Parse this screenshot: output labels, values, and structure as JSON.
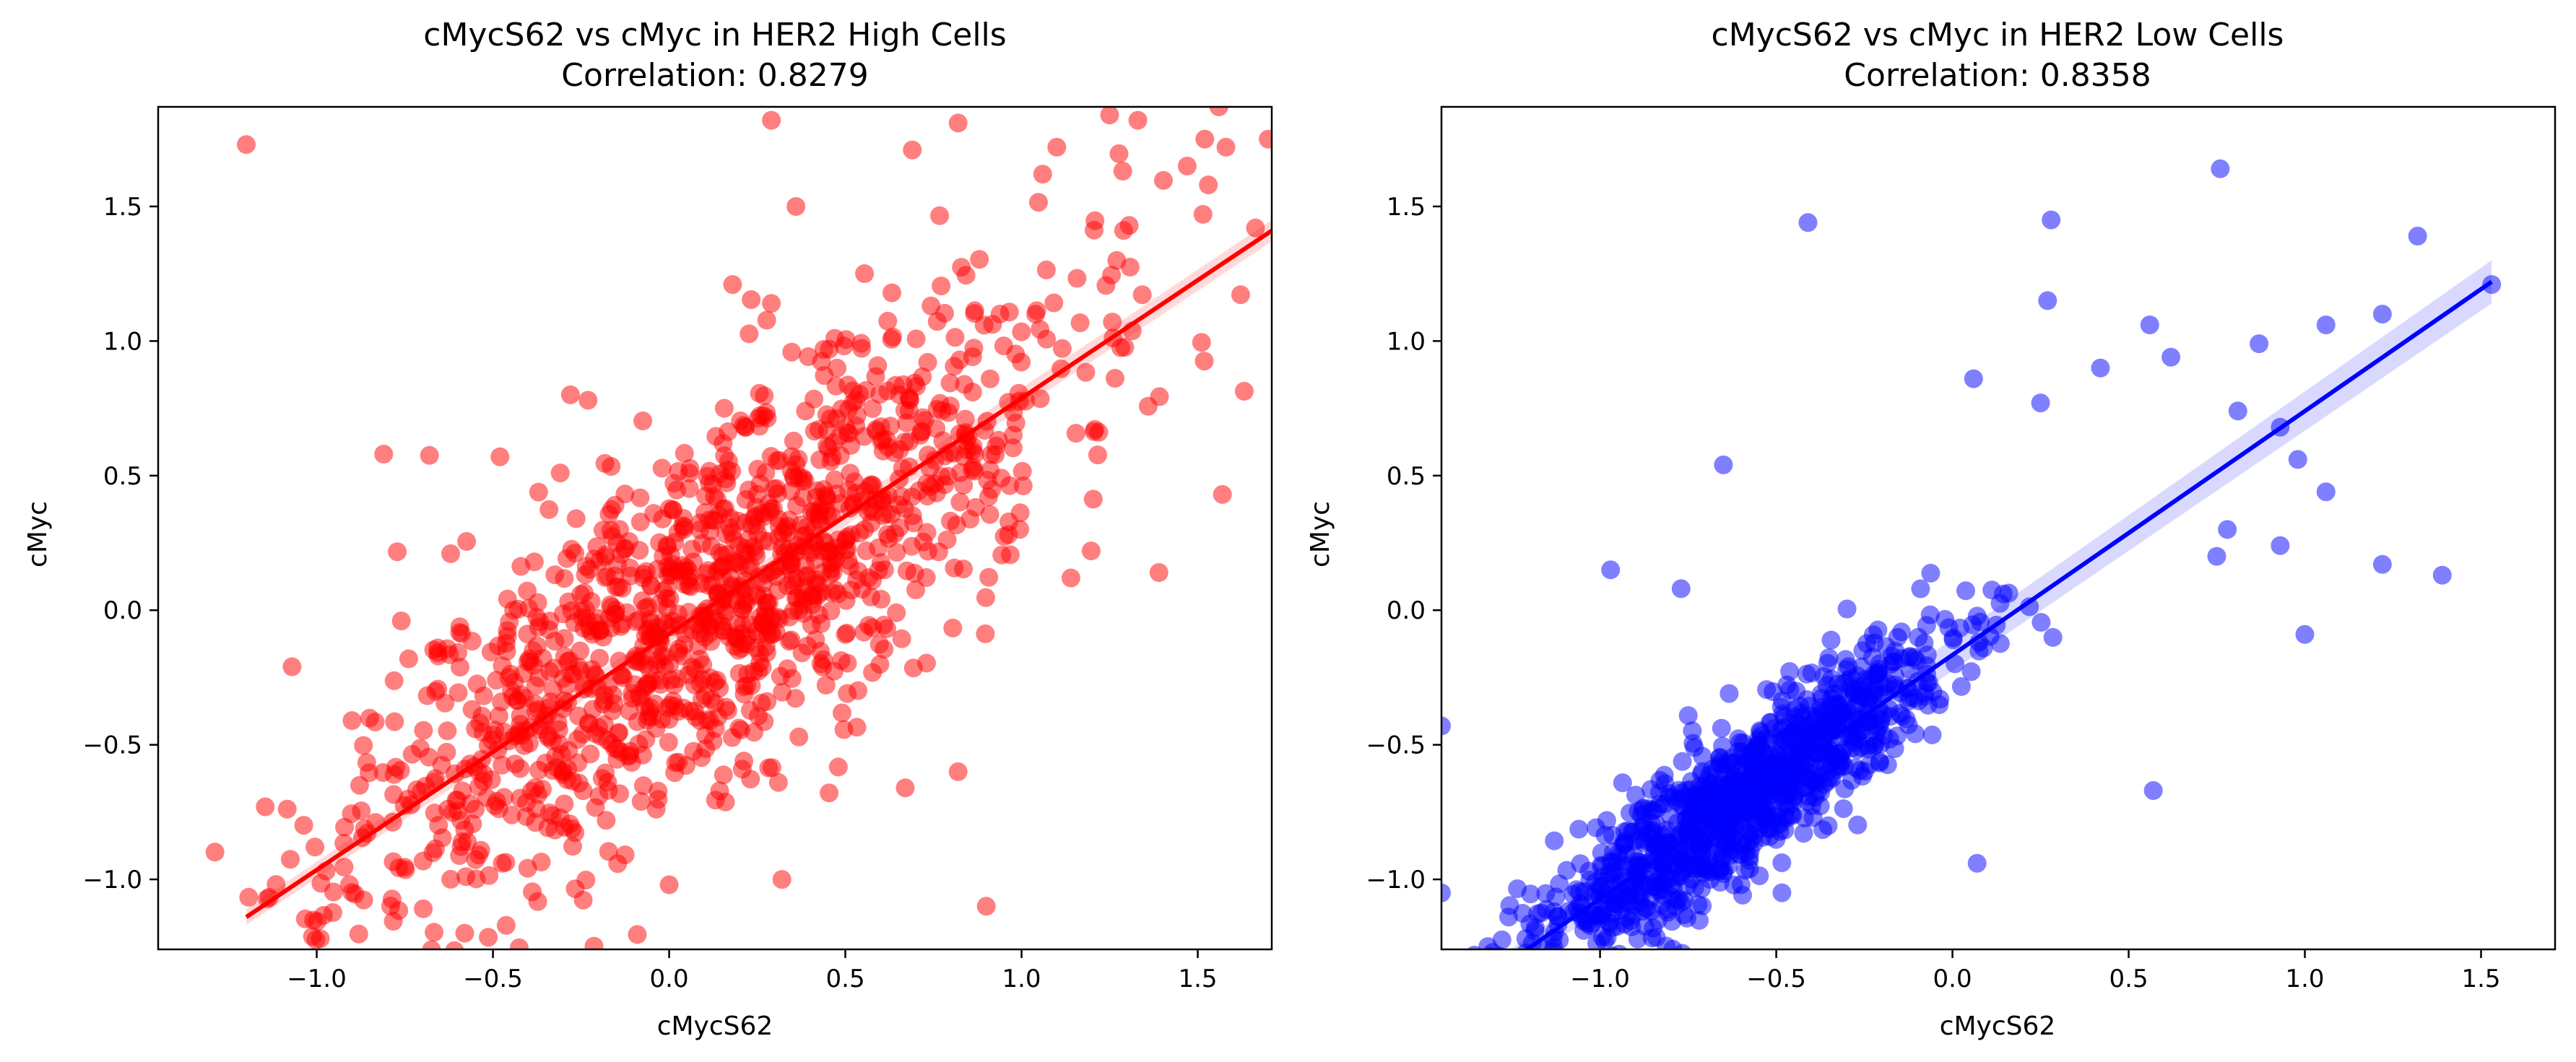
{
  "chart_data": [
    {
      "type": "scatter",
      "title": "cMycS62 vs cMyc in HER2 High Cells",
      "subtitle": "Correlation: 0.8279",
      "xlabel": "cMycS62",
      "ylabel": "cMyc",
      "xlim": [
        -1.45,
        1.71
      ],
      "ylim": [
        -1.26,
        1.87
      ],
      "xticks": [
        -1.0,
        -0.5,
        0.0,
        0.5,
        1.0,
        1.5
      ],
      "yticks": [
        -1.0,
        -0.5,
        0.0,
        0.5,
        1.0,
        1.5
      ],
      "tick_labels_x": [
        "−1.0",
        "−0.5",
        "0.0",
        "0.5",
        "1.0",
        "1.5"
      ],
      "tick_labels_y": [
        "−1.0",
        "−0.5",
        "0.0",
        "0.5",
        "1.0",
        "1.5"
      ],
      "color": "#ff0000",
      "point_alpha": 0.5,
      "regression": {
        "x": [
          -1.2,
          1.71
        ],
        "y": [
          -1.14,
          1.41
        ],
        "ci_halfwidth": [
          0.03,
          0.04
        ]
      },
      "points": [
        [
          -1.2,
          1.73
        ],
        [
          0.29,
          1.82
        ],
        [
          0.82,
          1.81
        ],
        [
          1.25,
          1.84
        ],
        [
          1.33,
          1.82
        ],
        [
          1.56,
          1.87
        ],
        [
          1.7,
          1.75
        ],
        [
          1.52,
          1.75
        ],
        [
          1.58,
          1.72
        ],
        [
          1.1,
          1.72
        ],
        [
          0.69,
          1.71
        ],
        [
          1.47,
          1.65
        ],
        [
          1.06,
          1.62
        ],
        [
          1.53,
          1.58
        ],
        [
          0.36,
          1.5
        ],
        [
          -0.81,
          0.58
        ],
        [
          -1.07,
          -0.21
        ],
        [
          1.57,
          0.43
        ],
        [
          1.39,
          0.14
        ],
        [
          1.14,
          0.12
        ],
        [
          0.67,
          -0.66
        ],
        [
          0.82,
          -0.6
        ],
        [
          0.31,
          -0.64
        ],
        [
          0.9,
          -1.1
        ],
        [
          0.32,
          -1.0
        ],
        [
          0.0,
          -1.02
        ],
        [
          -0.58,
          -1.2
        ],
        [
          -0.99,
          -1.22
        ],
        [
          -0.28,
          0.8
        ],
        [
          -0.48,
          0.57
        ],
        [
          -0.62,
          0.21
        ],
        [
          -0.9,
          -0.41
        ],
        [
          -0.76,
          -0.04
        ],
        [
          -0.23,
          0.78
        ],
        [
          0.18,
          1.21
        ],
        [
          0.29,
          1.14
        ],
        [
          0.47,
          1.01
        ]
      ],
      "cloud": {
        "n": 1300,
        "x_mean": 0.12,
        "x_sd": 0.5,
        "slope": 0.87,
        "intercept": -0.07,
        "resid_sd": 0.33,
        "seed": 11
      }
    },
    {
      "type": "scatter",
      "title": "cMycS62 vs cMyc in HER2 Low Cells",
      "subtitle": "Correlation: 0.8358",
      "xlabel": "cMycS62",
      "ylabel": "cMyc",
      "xlim": [
        -1.45,
        1.71
      ],
      "ylim": [
        -1.26,
        1.87
      ],
      "xticks": [
        -1.0,
        -0.5,
        0.0,
        0.5,
        1.0,
        1.5
      ],
      "yticks": [
        -1.0,
        -0.5,
        0.0,
        0.5,
        1.0,
        1.5
      ],
      "tick_labels_x": [
        "−1.0",
        "−0.5",
        "0.0",
        "0.5",
        "1.0",
        "1.5"
      ],
      "tick_labels_y": [
        "−1.0",
        "−0.5",
        "0.0",
        "0.5",
        "1.0",
        "1.5"
      ],
      "color": "#0000ff",
      "point_alpha": 0.5,
      "regression": {
        "x": [
          -1.45,
          1.53
        ],
        "y": [
          -1.48,
          1.22
        ],
        "ci_halfwidth": [
          0.04,
          0.08
        ]
      },
      "points": [
        [
          0.76,
          1.64
        ],
        [
          -0.41,
          1.44
        ],
        [
          0.28,
          1.45
        ],
        [
          1.32,
          1.39
        ],
        [
          1.53,
          1.21
        ],
        [
          0.27,
          1.15
        ],
        [
          1.22,
          1.1
        ],
        [
          1.06,
          1.06
        ],
        [
          0.56,
          1.06
        ],
        [
          0.87,
          0.99
        ],
        [
          -0.65,
          0.54
        ],
        [
          -1.45,
          -0.43
        ],
        [
          -1.45,
          -1.05
        ],
        [
          0.57,
          -0.67
        ],
        [
          1.0,
          -0.09
        ],
        [
          1.39,
          0.13
        ],
        [
          1.22,
          0.17
        ],
        [
          0.93,
          0.24
        ],
        [
          1.06,
          0.44
        ],
        [
          0.98,
          0.56
        ],
        [
          0.75,
          0.2
        ],
        [
          0.78,
          0.3
        ],
        [
          -0.97,
          0.15
        ],
        [
          0.07,
          -0.94
        ],
        [
          -0.77,
          0.08
        ],
        [
          0.25,
          0.77
        ],
        [
          0.06,
          0.86
        ],
        [
          0.42,
          0.9
        ],
        [
          0.62,
          0.94
        ],
        [
          0.93,
          0.68
        ],
        [
          0.81,
          0.74
        ]
      ],
      "cloud": {
        "n": 1100,
        "x_mean": -0.62,
        "x_sd": 0.3,
        "slope": 0.9,
        "intercept": -0.17,
        "resid_sd": 0.14,
        "seed": 23
      }
    }
  ]
}
